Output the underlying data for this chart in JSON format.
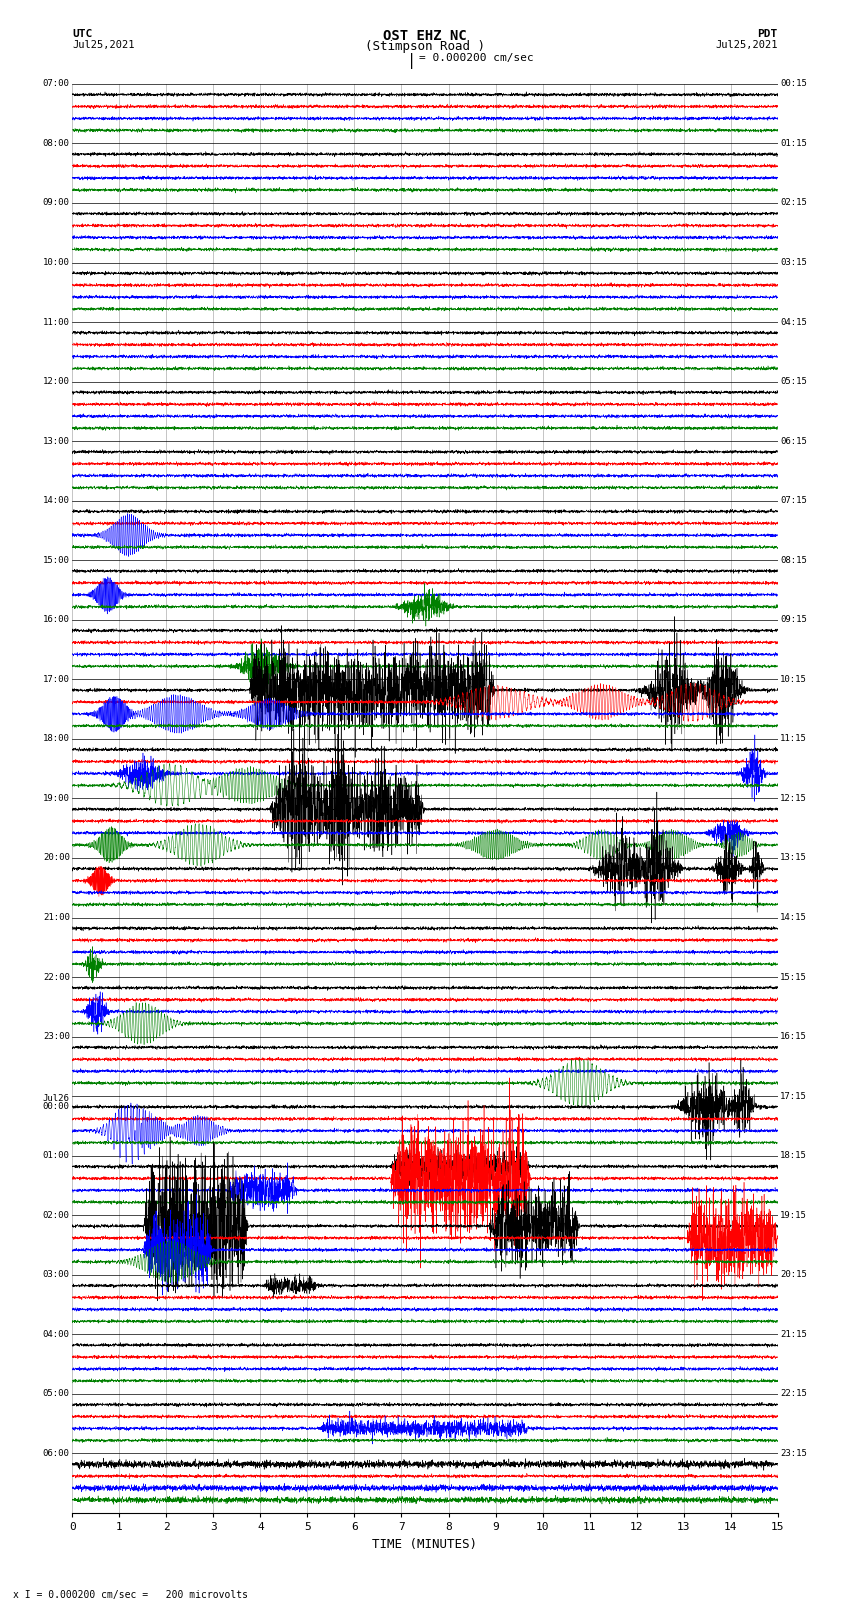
{
  "title_line1": "OST EHZ NC",
  "title_line2": "(Stimpson Road )",
  "scale_text": "I = 0.000200 cm/sec",
  "footer_text": "x I = 0.000200 cm/sec =   200 microvolts",
  "xlabel": "TIME (MINUTES)",
  "utc_labels": [
    "07:00",
    "08:00",
    "09:00",
    "10:00",
    "11:00",
    "12:00",
    "13:00",
    "14:00",
    "15:00",
    "16:00",
    "17:00",
    "18:00",
    "19:00",
    "20:00",
    "21:00",
    "22:00",
    "23:00",
    "Jul26\n00:00",
    "01:00",
    "02:00",
    "03:00",
    "04:00",
    "05:00",
    "06:00"
  ],
  "pdt_labels": [
    "00:15",
    "01:15",
    "02:15",
    "03:15",
    "04:15",
    "05:15",
    "06:15",
    "07:15",
    "08:15",
    "09:15",
    "10:15",
    "11:15",
    "12:15",
    "13:15",
    "14:15",
    "15:15",
    "16:15",
    "17:15",
    "18:15",
    "19:15",
    "20:15",
    "21:15",
    "22:15",
    "23:15"
  ],
  "num_hours": 24,
  "traces_per_row": 4,
  "trace_colors": [
    "black",
    "red",
    "blue",
    "green"
  ],
  "bg_color": "white",
  "grid_color": "#999999",
  "xmin": 0,
  "xmax": 15,
  "xticks": [
    0,
    1,
    2,
    3,
    4,
    5,
    6,
    7,
    8,
    9,
    10,
    11,
    12,
    13,
    14,
    15
  ],
  "noise_amp": 0.012,
  "seed": 42
}
